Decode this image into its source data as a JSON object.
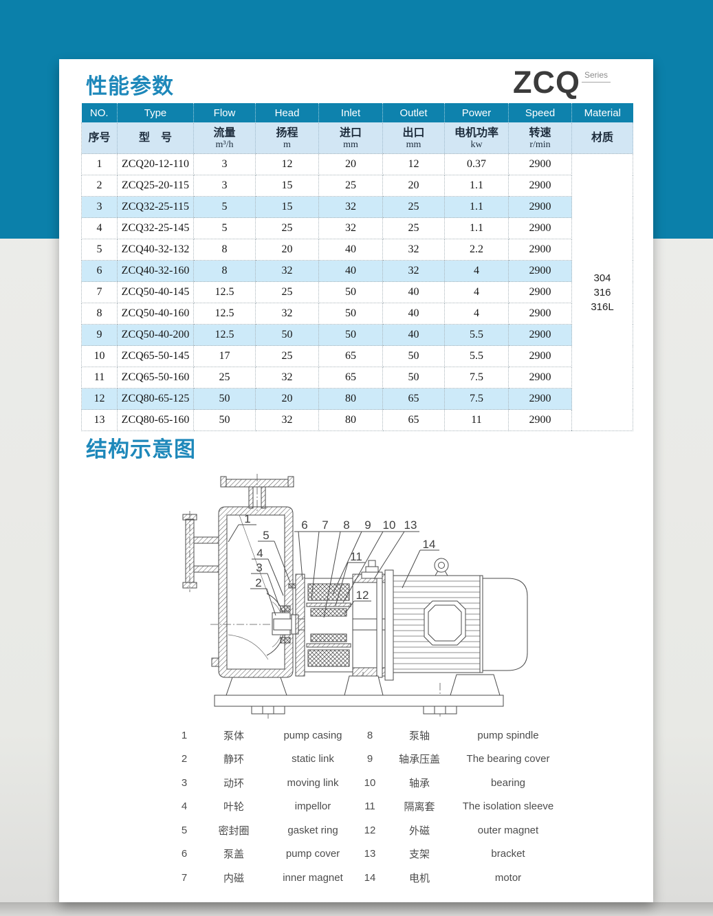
{
  "brand": {
    "logo": "ZCQ",
    "series": "Series"
  },
  "sections": {
    "performance_title": "性能参数",
    "structure_title": "结构示意图"
  },
  "colors": {
    "banner_teal": "#0b80aa",
    "table_header_teal": "#0e82ad",
    "table_subheader_blue": "#d2e6f4",
    "row_highlight_blue": "#cdeaf9",
    "title_blue": "#1e88ba",
    "logo_dark": "#3b3b3b"
  },
  "table": {
    "header_en": [
      "NO.",
      "Type",
      "Flow",
      "Head",
      "Inlet",
      "Outlet",
      "Power",
      "Speed",
      "Material"
    ],
    "header_cn": [
      {
        "t": "序号"
      },
      {
        "t": "型　号"
      },
      {
        "t": "流量",
        "u": "m³/h"
      },
      {
        "t": "扬程",
        "u": "m"
      },
      {
        "t": "进口",
        "u": "mm"
      },
      {
        "t": "出口",
        "u": "mm"
      },
      {
        "t": "电机功率",
        "u": "kw"
      },
      {
        "t": "转速",
        "u": "r/min"
      },
      {
        "t": "材质"
      }
    ],
    "rows": [
      {
        "no": "1",
        "type": "ZCQ20-12-110",
        "flow": "3",
        "head": "12",
        "inlet": "20",
        "outlet": "12",
        "power": "0.37",
        "speed": "2900",
        "highlight": false
      },
      {
        "no": "2",
        "type": "ZCQ25-20-115",
        "flow": "3",
        "head": "15",
        "inlet": "25",
        "outlet": "20",
        "power": "1.1",
        "speed": "2900",
        "highlight": false
      },
      {
        "no": "3",
        "type": "ZCQ32-25-115",
        "flow": "5",
        "head": "15",
        "inlet": "32",
        "outlet": "25",
        "power": "1.1",
        "speed": "2900",
        "highlight": true
      },
      {
        "no": "4",
        "type": "ZCQ32-25-145",
        "flow": "5",
        "head": "25",
        "inlet": "32",
        "outlet": "25",
        "power": "1.1",
        "speed": "2900",
        "highlight": false
      },
      {
        "no": "5",
        "type": "ZCQ40-32-132",
        "flow": "8",
        "head": "20",
        "inlet": "40",
        "outlet": "32",
        "power": "2.2",
        "speed": "2900",
        "highlight": false
      },
      {
        "no": "6",
        "type": "ZCQ40-32-160",
        "flow": "8",
        "head": "32",
        "inlet": "40",
        "outlet": "32",
        "power": "4",
        "speed": "2900",
        "highlight": true
      },
      {
        "no": "7",
        "type": "ZCQ50-40-145",
        "flow": "12.5",
        "head": "25",
        "inlet": "50",
        "outlet": "40",
        "power": "4",
        "speed": "2900",
        "highlight": false
      },
      {
        "no": "8",
        "type": "ZCQ50-40-160",
        "flow": "12.5",
        "head": "32",
        "inlet": "50",
        "outlet": "40",
        "power": "4",
        "speed": "2900",
        "highlight": false
      },
      {
        "no": "9",
        "type": "ZCQ50-40-200",
        "flow": "12.5",
        "head": "50",
        "inlet": "50",
        "outlet": "40",
        "power": "5.5",
        "speed": "2900",
        "highlight": true
      },
      {
        "no": "10",
        "type": "ZCQ65-50-145",
        "flow": "17",
        "head": "25",
        "inlet": "65",
        "outlet": "50",
        "power": "5.5",
        "speed": "2900",
        "highlight": false
      },
      {
        "no": "11",
        "type": "ZCQ65-50-160",
        "flow": "25",
        "head": "32",
        "inlet": "65",
        "outlet": "50",
        "power": "7.5",
        "speed": "2900",
        "highlight": false
      },
      {
        "no": "12",
        "type": "ZCQ80-65-125",
        "flow": "50",
        "head": "20",
        "inlet": "80",
        "outlet": "65",
        "power": "7.5",
        "speed": "2900",
        "highlight": true
      },
      {
        "no": "13",
        "type": "ZCQ80-65-160",
        "flow": "50",
        "head": "32",
        "inlet": "80",
        "outlet": "65",
        "power": "11",
        "speed": "2900",
        "highlight": false
      }
    ],
    "material_options": [
      "304",
      "316",
      "316L"
    ]
  },
  "diagram": {
    "callouts": [
      "1",
      "2",
      "3",
      "4",
      "5",
      "6",
      "7",
      "8",
      "9",
      "10",
      "11",
      "12",
      "13",
      "14"
    ]
  },
  "legend": {
    "items": [
      {
        "no": "1",
        "cn": "泵体",
        "en": "pump casing"
      },
      {
        "no": "2",
        "cn": "静环",
        "en": "static link"
      },
      {
        "no": "3",
        "cn": "动环",
        "en": "moving link"
      },
      {
        "no": "4",
        "cn": "叶轮",
        "en": "impellor"
      },
      {
        "no": "5",
        "cn": "密封圈",
        "en": "gasket ring"
      },
      {
        "no": "6",
        "cn": "泵盖",
        "en": "pump cover"
      },
      {
        "no": "7",
        "cn": "内磁",
        "en": "inner magnet"
      },
      {
        "no": "8",
        "cn": "泵轴",
        "en": "pump spindle"
      },
      {
        "no": "9",
        "cn": "轴承压盖",
        "en": "The bearing cover"
      },
      {
        "no": "10",
        "cn": "轴承",
        "en": "bearing"
      },
      {
        "no": "11",
        "cn": "隔离套",
        "en": "The isolation sleeve"
      },
      {
        "no": "12",
        "cn": "外磁",
        "en": "outer magnet"
      },
      {
        "no": "13",
        "cn": "支架",
        "en": "bracket"
      },
      {
        "no": "14",
        "cn": "电机",
        "en": "motor"
      }
    ]
  }
}
